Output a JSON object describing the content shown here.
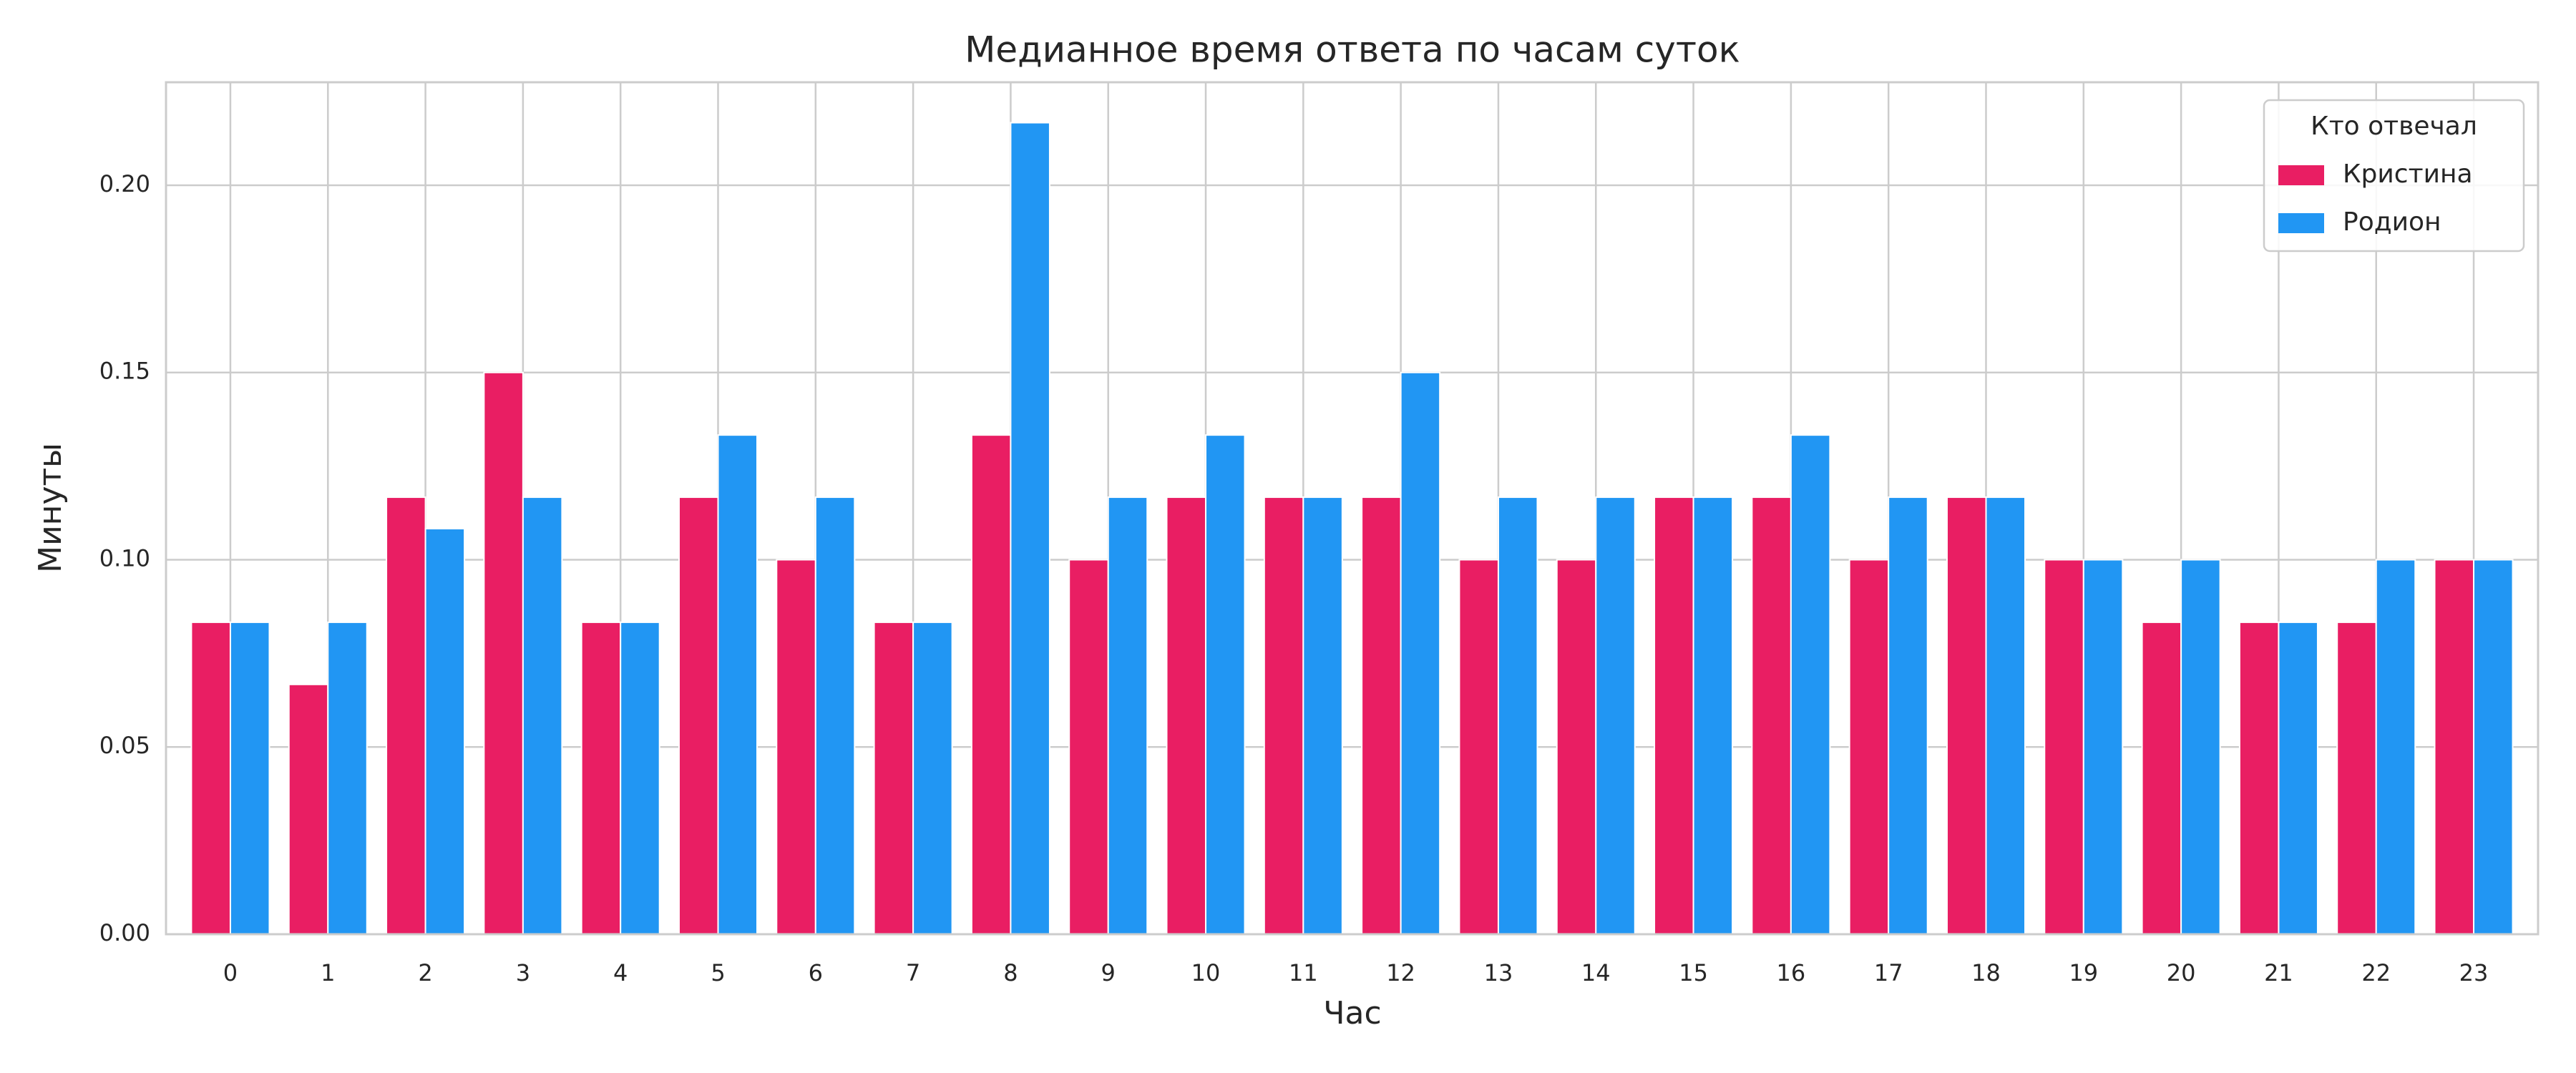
{
  "chart_data": {
    "type": "bar",
    "title": "Медианное время ответа по часам суток",
    "x_label": "Час",
    "y_label": "Минуты",
    "categories": [
      "0",
      "1",
      "2",
      "3",
      "4",
      "5",
      "6",
      "7",
      "8",
      "9",
      "10",
      "11",
      "12",
      "13",
      "14",
      "15",
      "16",
      "17",
      "18",
      "19",
      "20",
      "21",
      "22",
      "23"
    ],
    "series": [
      {
        "name": "Кристина",
        "color": "#e91e63",
        "values": [
          0.0833,
          0.0667,
          0.1167,
          0.15,
          0.0833,
          0.1167,
          0.1,
          0.0833,
          0.1333,
          0.1,
          0.1167,
          0.1167,
          0.1167,
          0.1,
          0.1,
          0.1167,
          0.1167,
          0.1,
          0.1167,
          0.1,
          0.0833,
          0.0833,
          0.0833,
          0.1
        ]
      },
      {
        "name": "Родион",
        "color": "#2196f3",
        "values": [
          0.0833,
          0.0833,
          0.1083,
          0.1167,
          0.0833,
          0.1333,
          0.1167,
          0.0833,
          0.2167,
          0.1167,
          0.1333,
          0.1167,
          0.15,
          0.1167,
          0.1167,
          0.1167,
          0.1333,
          0.1167,
          0.1167,
          0.1,
          0.1,
          0.0833,
          0.1,
          0.1
        ]
      }
    ],
    "legend_title": "Кто отвечал",
    "legend_position": "upper right",
    "ylim": [
      0,
      0.2275
    ],
    "yticks": [
      {
        "value": 0,
        "label": "0.00"
      },
      {
        "value": 0.05,
        "label": "0.05"
      },
      {
        "value": 0.1,
        "label": "0.10"
      },
      {
        "value": 0.15,
        "label": "0.15"
      },
      {
        "value": 0.2,
        "label": "0.20"
      }
    ],
    "grid": true
  }
}
